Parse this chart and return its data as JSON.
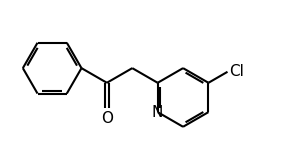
{
  "background_color": "#ffffff",
  "line_color": "#000000",
  "line_width": 1.5,
  "label_color": "#000000",
  "atoms": {
    "O": {
      "label": "O",
      "fontsize": 11
    },
    "N": {
      "label": "N",
      "fontsize": 11
    },
    "Cl": {
      "label": "Cl",
      "fontsize": 11
    }
  },
  "blen": 1.0,
  "figsize": [
    2.92,
    1.48
  ],
  "dpi": 100,
  "xlim": [
    0.0,
    9.5
  ],
  "ylim": [
    0.5,
    5.5
  ]
}
